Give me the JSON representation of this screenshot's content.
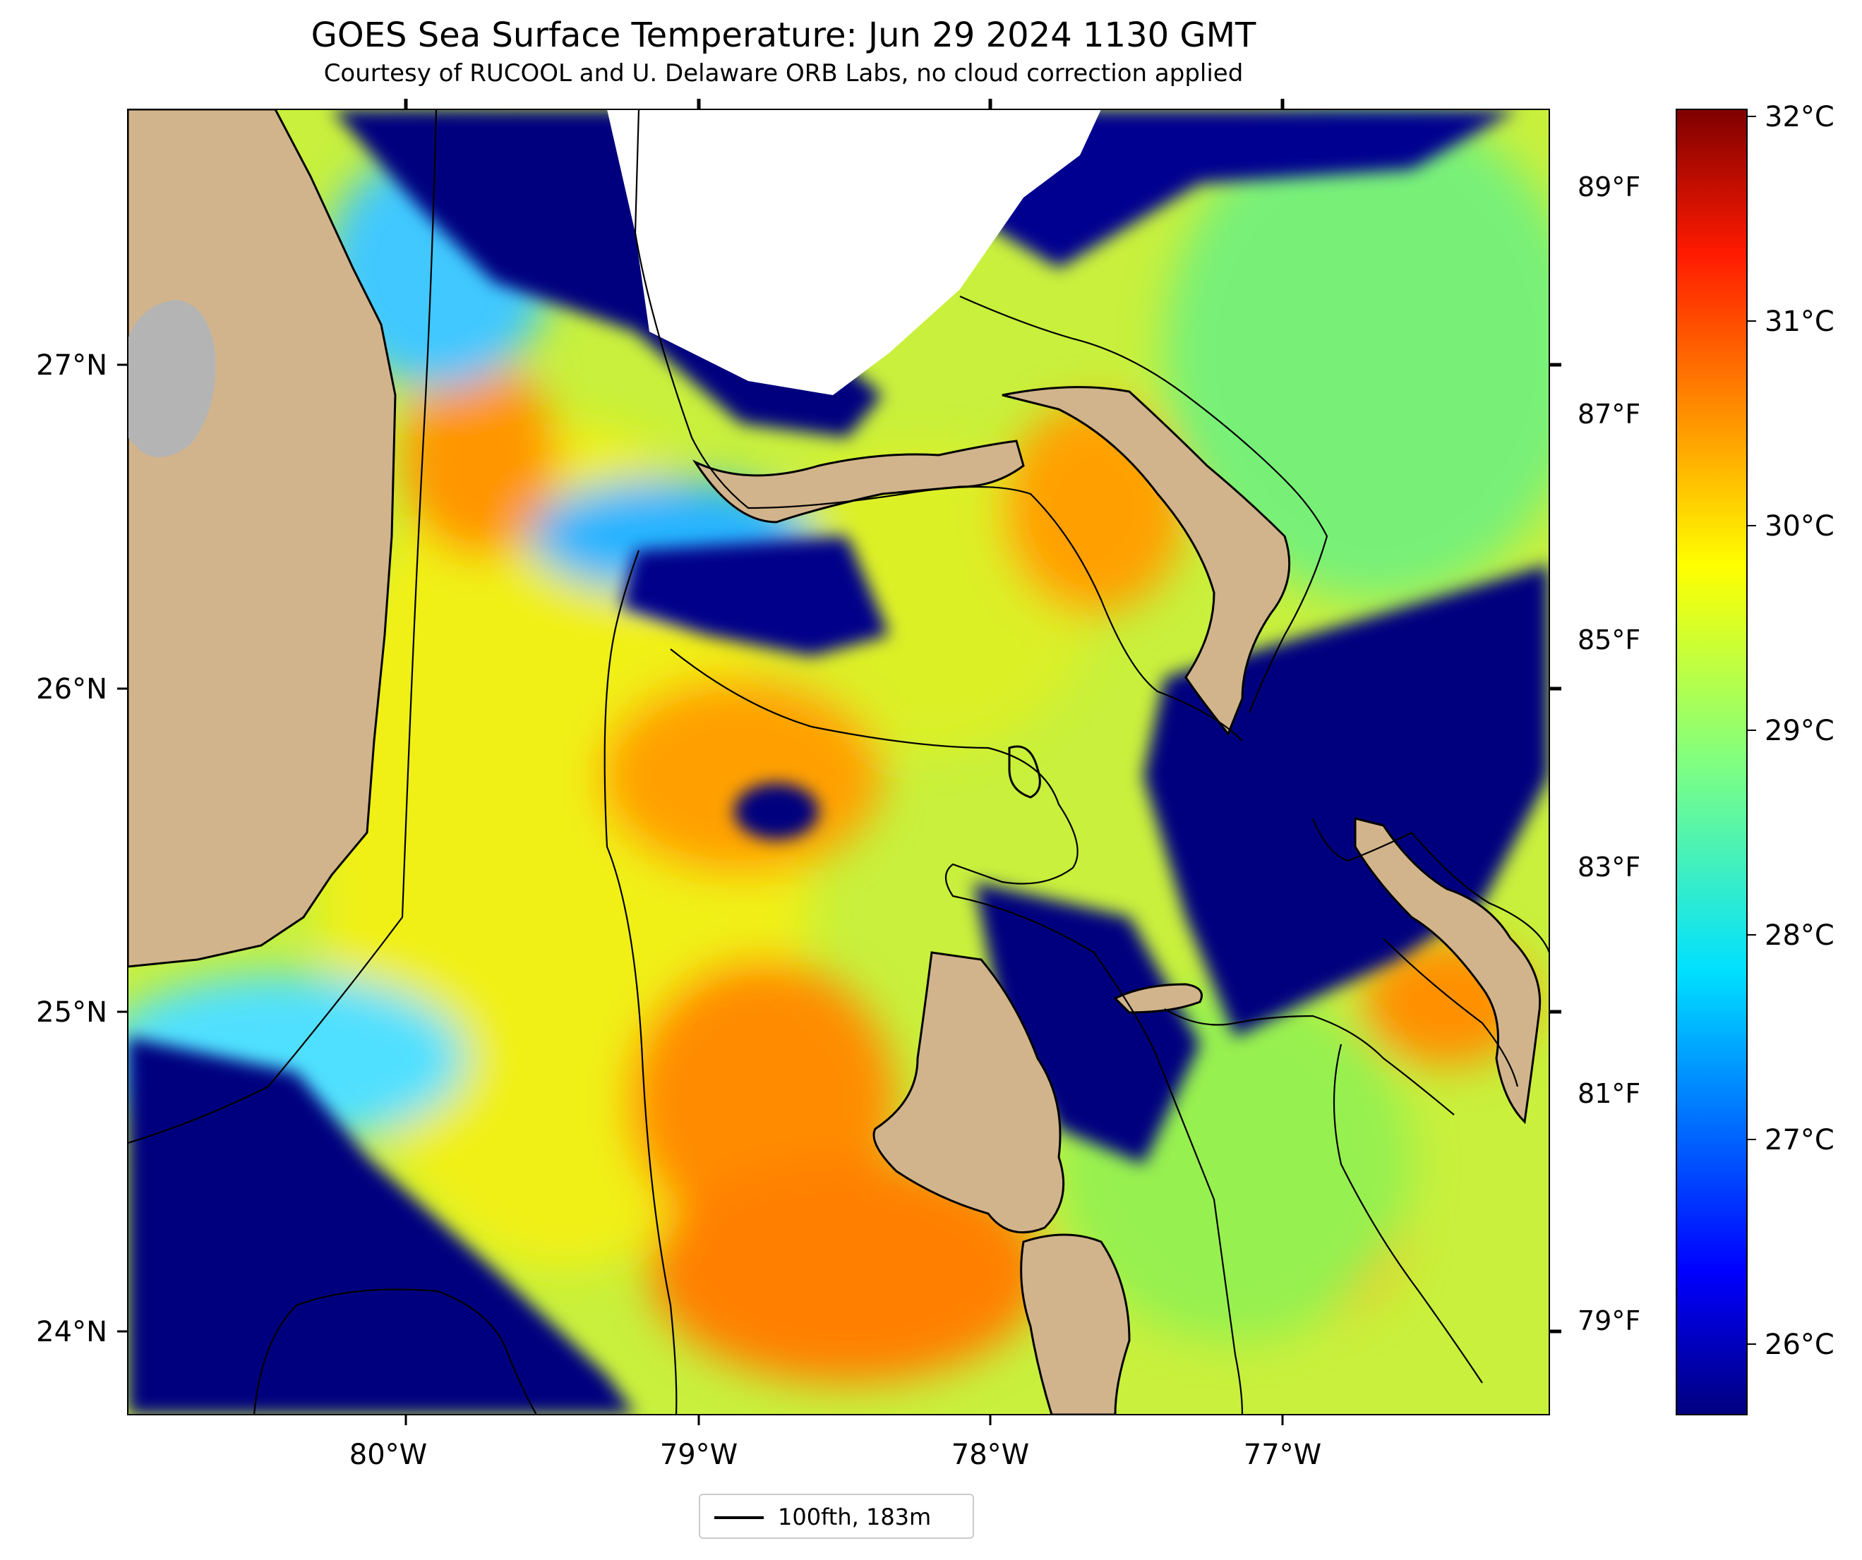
{
  "title": "GOES Sea Surface Temperature: Jun 29 2024 1130 GMT",
  "subtitle": "Courtesy of RUCOOL and U. Delaware ORB Labs, no cloud correction applied",
  "map": {
    "x_ticks": [
      "80°W",
      "79°W",
      "78°W",
      "77°W"
    ],
    "y_ticks": [
      "27°N",
      "26°N",
      "25°N",
      "24°N"
    ],
    "colors": {
      "land": "#d2b48c",
      "lake": "#b4b4b4",
      "cloud_mask": "#ffffff",
      "contour": "#000000",
      "cold": "#00007f",
      "warm": "#ff8c00"
    }
  },
  "colorbar": {
    "celsius_ticks": [
      "32°C",
      "31°C",
      "30°C",
      "29°C",
      "28°C",
      "27°C",
      "26°C"
    ],
    "fahrenheit_ticks": [
      "89°F",
      "87°F",
      "85°F",
      "83°F",
      "81°F",
      "79°F"
    ],
    "colormap": "jet"
  },
  "legend": {
    "label": "100fth, 183m"
  }
}
